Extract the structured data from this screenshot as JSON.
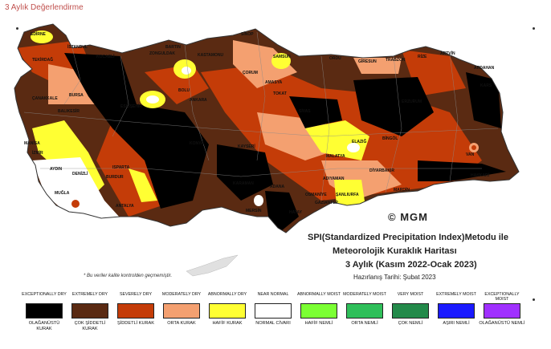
{
  "page_title": "3 Aylık Değerlendirme",
  "map_title": {
    "line1": "SPI(Standardized Precipitation Index)Metodu ile",
    "line2": "Meteorolojik Kuraklık Haritası",
    "line3": "3 Aylık (Kasım 2022-Ocak 2023)",
    "line4": "Hazırlanış Tarihi: Şubat 2023"
  },
  "logo_text": "© MGM",
  "quality_note": "* Bu veriler kalite kontrolden geçmemiştir.",
  "colors": {
    "exceptionally_dry": "#000000",
    "extremely_dry": "#5a2a12",
    "severely_dry": "#c43c08",
    "moderately_dry": "#f4a070",
    "abnormally_dry": "#ffff33",
    "near_normal": "#ffffff",
    "abnormally_moist": "#7bff33",
    "moderately_moist": "#2fbf5a",
    "very_moist": "#238a4a",
    "extremely_moist": "#1a1aff",
    "exceptionally_moist": "#a030ff"
  },
  "legend": [
    {
      "en": "EXCEPTIONALLY DRY",
      "tr": "OLAĞANÜSTÜ KURAK",
      "color": "#000000"
    },
    {
      "en": "EXTREMELY DRY",
      "tr": "ÇOK ŞİDDETLİ KURAK",
      "color": "#5a2a12"
    },
    {
      "en": "SEVERELY DRY",
      "tr": "ŞİDDETLİ KURAK",
      "color": "#c43c08"
    },
    {
      "en": "MODERATELY DRY",
      "tr": "ORTA KURAK",
      "color": "#f4a070"
    },
    {
      "en": "ABNORMALLY DRY",
      "tr": "HAFİF KURAK",
      "color": "#ffff33"
    },
    {
      "en": "NEAR NORMAL",
      "tr": "NORMAL CİVARI",
      "color": "#ffffff"
    },
    {
      "en": "ABNORMALLY MOIST",
      "tr": "HAFİF NEMLİ",
      "color": "#7bff33"
    },
    {
      "en": "MODERATELY MOIST",
      "tr": "ORTA NEMLİ",
      "color": "#2fbf5a"
    },
    {
      "en": "VERY MOIST",
      "tr": "ÇOK NEMLİ",
      "color": "#238a4a"
    },
    {
      "en": "EXTREMELY MOIST",
      "tr": "AŞIRI NEMLİ",
      "color": "#1a1aff"
    },
    {
      "en": "EXCEPTIONALLY MOIST",
      "tr": "OLAĞANÜSTÜ NEMLİ",
      "color": "#a030ff"
    }
  ],
  "cities": [
    "EDİRNE",
    "TEKİRDAĞ",
    "İSTANBUL",
    "KOCAELİ",
    "BARTIN",
    "ZONGULDAK",
    "KASTAMONU",
    "SİNOP",
    "SAMSUN",
    "ORDU",
    "GİRESUN",
    "TRABZON",
    "RİZE",
    "ARTVİN",
    "ARDAHAN",
    "ÇORUM",
    "AMASYA",
    "TOKAT",
    "ANKARA",
    "BOLU",
    "ESKİŞEHİR",
    "BURSA",
    "ÇANAKKALE",
    "BALIKESİR",
    "MANİSA",
    "İZMİR",
    "AYDIN",
    "DENİZLİ",
    "MUĞLA",
    "BURDUR",
    "ANTALYA",
    "ISPARTA",
    "KONYA",
    "KARAMAN",
    "MERSİN",
    "ADANA",
    "KAYSERİ",
    "SİVAS",
    "MALATYA",
    "ELAZIĞ",
    "ERZURUM",
    "KARS",
    "VAN",
    "HAKKARİ",
    "DİYARBAKIR",
    "MARDİN",
    "ŞANLIURFA",
    "GAZİANTEP",
    "ADIYAMAN",
    "HATAY",
    "OSMANİYE",
    "BİNGÖL"
  ]
}
